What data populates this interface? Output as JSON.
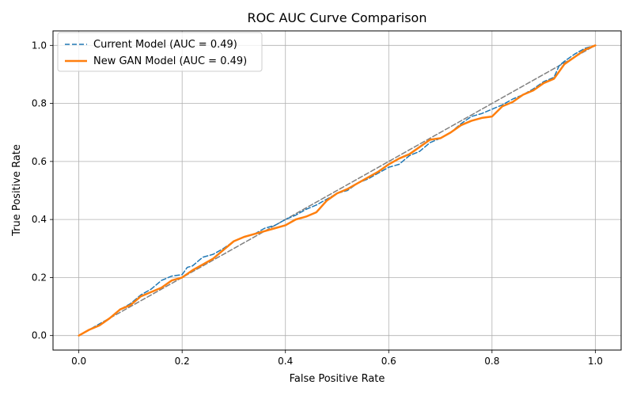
{
  "chart_data": {
    "type": "line",
    "title": "ROC AUC Curve Comparison",
    "xlabel": "False Positive Rate",
    "ylabel": "True Positive Rate",
    "xlim": [
      -0.05,
      1.05
    ],
    "ylim": [
      -0.05,
      1.05
    ],
    "xticks": [
      "0.0",
      "0.2",
      "0.4",
      "0.6",
      "0.8",
      "1.0"
    ],
    "yticks": [
      "0.0",
      "0.2",
      "0.4",
      "0.6",
      "0.8",
      "1.0"
    ],
    "grid": true,
    "legend_position": "upper left",
    "series": [
      {
        "name": "Current Model (AUC = 0.49)",
        "color": "#1f77b4",
        "linestyle": "dashed",
        "x": [
          0.0,
          0.02,
          0.04,
          0.06,
          0.08,
          0.1,
          0.12,
          0.14,
          0.16,
          0.18,
          0.2,
          0.21,
          0.22,
          0.24,
          0.26,
          0.28,
          0.3,
          0.32,
          0.34,
          0.36,
          0.38,
          0.4,
          0.42,
          0.44,
          0.46,
          0.48,
          0.5,
          0.52,
          0.54,
          0.56,
          0.58,
          0.6,
          0.62,
          0.64,
          0.66,
          0.68,
          0.7,
          0.72,
          0.74,
          0.76,
          0.78,
          0.8,
          0.82,
          0.84,
          0.86,
          0.88,
          0.9,
          0.92,
          0.93,
          0.94,
          0.96,
          0.98,
          1.0
        ],
        "y": [
          0.0,
          0.02,
          0.04,
          0.06,
          0.09,
          0.11,
          0.14,
          0.16,
          0.19,
          0.205,
          0.21,
          0.235,
          0.24,
          0.27,
          0.28,
          0.3,
          0.325,
          0.34,
          0.35,
          0.37,
          0.38,
          0.4,
          0.415,
          0.435,
          0.45,
          0.47,
          0.49,
          0.5,
          0.525,
          0.54,
          0.56,
          0.58,
          0.59,
          0.62,
          0.635,
          0.665,
          0.68,
          0.7,
          0.73,
          0.755,
          0.765,
          0.78,
          0.795,
          0.815,
          0.83,
          0.85,
          0.875,
          0.89,
          0.93,
          0.945,
          0.97,
          0.99,
          1.0
        ]
      },
      {
        "name": "New GAN Model (AUC = 0.49)",
        "color": "#ff7f0e",
        "linestyle": "solid",
        "x": [
          0.0,
          0.02,
          0.04,
          0.06,
          0.08,
          0.1,
          0.12,
          0.14,
          0.16,
          0.18,
          0.2,
          0.22,
          0.24,
          0.26,
          0.28,
          0.3,
          0.32,
          0.34,
          0.36,
          0.38,
          0.4,
          0.42,
          0.44,
          0.46,
          0.48,
          0.5,
          0.52,
          0.54,
          0.56,
          0.58,
          0.6,
          0.62,
          0.64,
          0.66,
          0.68,
          0.7,
          0.72,
          0.74,
          0.76,
          0.78,
          0.8,
          0.82,
          0.84,
          0.86,
          0.88,
          0.9,
          0.92,
          0.93,
          0.94,
          0.96,
          0.98,
          1.0
        ],
        "y": [
          0.0,
          0.02,
          0.035,
          0.06,
          0.09,
          0.105,
          0.135,
          0.15,
          0.165,
          0.19,
          0.2,
          0.225,
          0.245,
          0.265,
          0.295,
          0.325,
          0.34,
          0.35,
          0.36,
          0.37,
          0.38,
          0.4,
          0.41,
          0.425,
          0.465,
          0.49,
          0.505,
          0.525,
          0.545,
          0.565,
          0.59,
          0.61,
          0.625,
          0.65,
          0.675,
          0.68,
          0.7,
          0.725,
          0.74,
          0.75,
          0.755,
          0.79,
          0.805,
          0.83,
          0.845,
          0.87,
          0.885,
          0.91,
          0.935,
          0.96,
          0.985,
          1.0
        ]
      },
      {
        "color": "#808080",
        "linestyle": "dashed",
        "x": [
          0.0,
          1.0
        ],
        "y": [
          0.0,
          1.0
        ]
      }
    ]
  }
}
